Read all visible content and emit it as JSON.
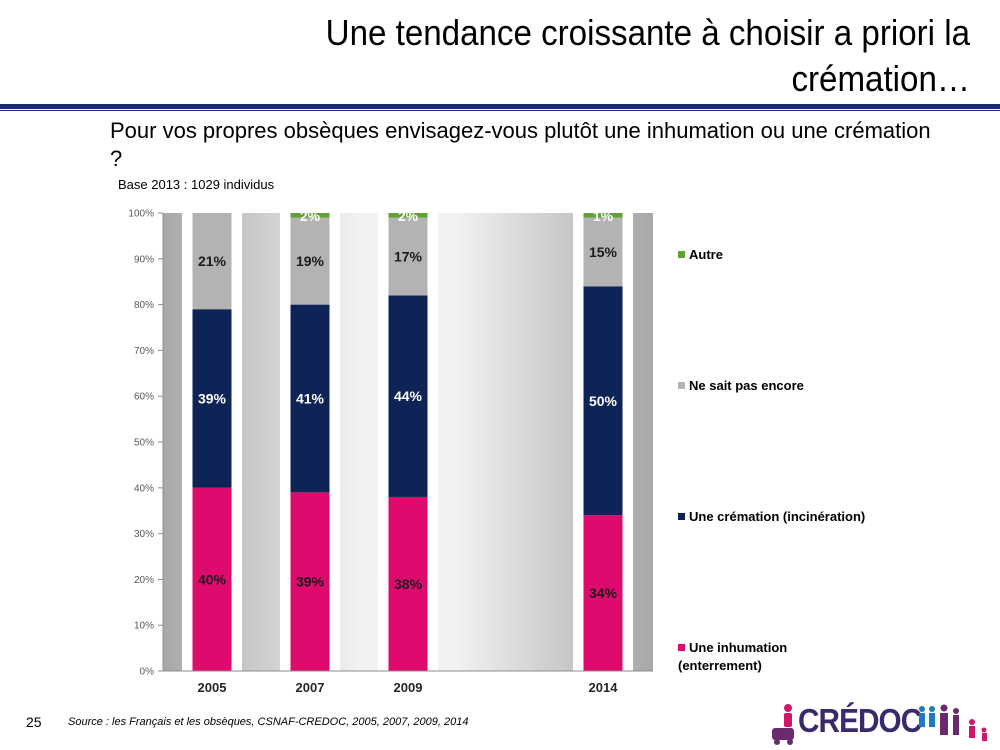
{
  "slide": {
    "title": "Une tendance croissante à choisir a priori la crémation…",
    "question": "Pour vos propres obsèques envisagez-vous plutôt une inhumation ou une crémation ?",
    "base": "Base 2013 : 1029 individus",
    "page_number": "25",
    "source": "Source : les Français et les obsèques, CSNAF-CREDOC, 2005, 2007, 2009, 2014",
    "logo_text": "CRÉDOC"
  },
  "colors": {
    "title_rule": "#1a2a6c",
    "logo": "#3a2a6c"
  },
  "chart_data": {
    "type": "bar",
    "stacked": true,
    "categories": [
      "2005",
      "2007",
      "2009",
      "2014"
    ],
    "ylim": [
      0,
      100
    ],
    "yticks": [
      "0%",
      "10%",
      "20%",
      "30%",
      "40%",
      "50%",
      "60%",
      "70%",
      "80%",
      "90%",
      "100%"
    ],
    "series": [
      {
        "name": "Une inhumation (enterrement)",
        "color": "#de0a6e",
        "values": [
          40,
          39,
          38,
          34
        ],
        "labels": [
          "40%",
          "39%",
          "38%",
          "34%"
        ]
      },
      {
        "name": "Une crémation (incinération)",
        "color": "#0f2456",
        "values": [
          39,
          41,
          44,
          50
        ],
        "labels": [
          "39%",
          "41%",
          "44%",
          "50%"
        ]
      },
      {
        "name": "Ne sait pas encore",
        "color": "#b3b3b3",
        "values": [
          21,
          19,
          17,
          15
        ],
        "labels": [
          "21%",
          "19%",
          "17%",
          "15%"
        ]
      },
      {
        "name": "Autre",
        "color": "#5ea331",
        "values": [
          0,
          2,
          2,
          1
        ],
        "labels": [
          "",
          "2%",
          "2%",
          "1%"
        ]
      }
    ],
    "legend_position": "right",
    "grid": false
  }
}
